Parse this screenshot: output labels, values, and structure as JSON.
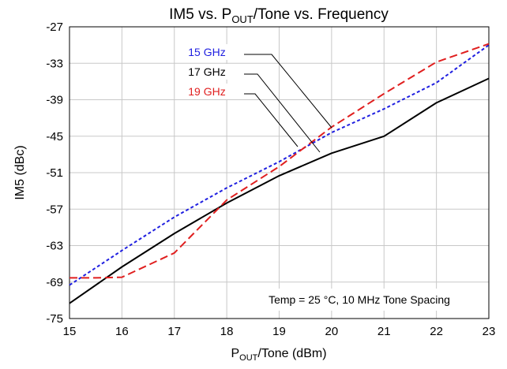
{
  "chart_data": {
    "type": "line",
    "title": {
      "main": "IM5 vs. P",
      "sub": "OUT",
      "rest": "/Tone vs. Frequency"
    },
    "xlabel": {
      "main": "P",
      "sub": "OUT",
      "rest": "/Tone (dBm)"
    },
    "ylabel": "IM5 (dBc)",
    "xlim": [
      15,
      23
    ],
    "ylim": [
      -75,
      -27
    ],
    "xticks": [
      15,
      16,
      17,
      18,
      19,
      20,
      21,
      22,
      23
    ],
    "yticks": [
      -75,
      -69,
      -63,
      -57,
      -51,
      -45,
      -39,
      -33,
      -27
    ],
    "grid": true,
    "annotation": "Temp = 25 °C, 10 MHz Tone Spacing",
    "series": [
      {
        "name": "15 GHz",
        "color": "#1f1fe0",
        "dash": "dashed-short",
        "x": [
          15,
          16,
          17,
          18,
          19,
          20,
          21,
          22,
          23
        ],
        "y": [
          -69.5,
          -63.8,
          -58.3,
          -53.5,
          -49.2,
          -44.4,
          -40.5,
          -36.2,
          -30.0
        ]
      },
      {
        "name": "17 GHz",
        "color": "#000000",
        "dash": "solid",
        "x": [
          15,
          16,
          17,
          18,
          19,
          20,
          21,
          22,
          23
        ],
        "y": [
          -72.5,
          -66.5,
          -61.0,
          -56.0,
          -51.5,
          -47.8,
          -45.0,
          -39.5,
          -35.5
        ]
      },
      {
        "name": "19 GHz",
        "color": "#e01f1f",
        "dash": "dashed-long",
        "x": [
          15,
          15.5,
          16,
          17,
          18,
          19,
          20,
          21,
          22,
          23
        ],
        "y": [
          -68.3,
          -68.3,
          -68.2,
          -64.2,
          -55.5,
          -50.0,
          -43.5,
          -38.0,
          -32.8,
          -29.8
        ]
      }
    ]
  }
}
